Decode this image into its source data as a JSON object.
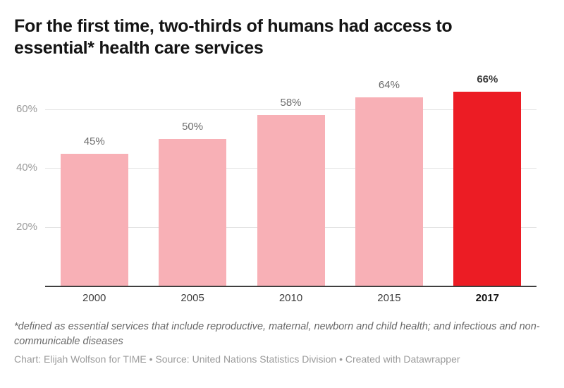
{
  "header": {
    "title_lines": [
      "For the first time, two-thirds of humans had access to",
      "essential* health care services"
    ]
  },
  "chart_data": {
    "type": "bar",
    "title": "For the first time, two-thirds of humans had access to essential* health care services",
    "categories": [
      "2000",
      "2005",
      "2010",
      "2015",
      "2017"
    ],
    "values": [
      45,
      50,
      58,
      64,
      66
    ],
    "value_labels": [
      "45%",
      "50%",
      "58%",
      "64%",
      "66%"
    ],
    "unit": "%",
    "xlabel": "",
    "ylabel": "",
    "ylim": [
      0,
      72
    ],
    "yticks": [
      20,
      40,
      60
    ],
    "ytick_labels": [
      "20%",
      "40%",
      "60%"
    ],
    "grid": "horizontal",
    "legend": "none",
    "highlight_index": 4,
    "bar_color": "#f8b0b6",
    "highlight_color": "#ec1c24"
  },
  "footer": {
    "footnote": "*defined as essential services that include reproductive, maternal, newborn and child health; and infectious and non-communicable diseases",
    "byline": "Chart: Elijah Wolfson for TIME • Source: United Nations Statistics Division • Created with Datawrapper"
  }
}
